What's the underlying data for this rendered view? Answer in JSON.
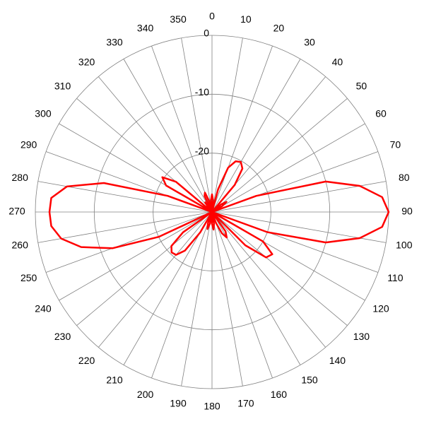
{
  "chart_data": {
    "type": "polar",
    "x": [
      0,
      5,
      10,
      15,
      20,
      25,
      30,
      35,
      40,
      45,
      50,
      55,
      60,
      65,
      70,
      75,
      80,
      85,
      90,
      95,
      100,
      105,
      110,
      115,
      120,
      125,
      130,
      135,
      140,
      145,
      150,
      155,
      160,
      165,
      170,
      175,
      180,
      185,
      190,
      195,
      200,
      205,
      210,
      215,
      220,
      225,
      230,
      235,
      240,
      245,
      250,
      255,
      260,
      265,
      270,
      275,
      280,
      285,
      290,
      295,
      300,
      305,
      310,
      315,
      320,
      325,
      330,
      335,
      340,
      345,
      350,
      355
    ],
    "values": [
      -27,
      -28,
      -30,
      -26,
      -22,
      -20.5,
      -20.2,
      -21,
      -24,
      -30,
      -28,
      -27,
      -28,
      -30,
      -22,
      -10,
      -4.5,
      -1,
      0,
      -1,
      -4.5,
      -10,
      -20,
      -30,
      -20,
      -17.5,
      -18,
      -22,
      -30,
      -26,
      -25,
      -26,
      -28,
      -30,
      -28,
      -27,
      -28,
      -30,
      -28,
      -27,
      -28,
      -30,
      -26,
      -22,
      -20.5,
      -20.3,
      -21,
      -24,
      -30,
      -20,
      -12,
      -7,
      -4,
      -2.6,
      -2.4,
      -2.6,
      -5,
      -11,
      -22,
      -30,
      -21,
      -19.7,
      -22,
      -30,
      -29,
      -28,
      -30,
      -27,
      -26.5,
      -28,
      -30,
      -28
    ],
    "color": "#ff0000",
    "ylim": [
      -30,
      0
    ],
    "yticks": [
      0,
      -10,
      -20
    ],
    "xticks": [
      0,
      10,
      20,
      30,
      40,
      50,
      60,
      70,
      80,
      90,
      100,
      110,
      120,
      130,
      140,
      150,
      160,
      170,
      180,
      190,
      200,
      210,
      220,
      230,
      240,
      250,
      260,
      270,
      280,
      290,
      300,
      310,
      320,
      330,
      340,
      350
    ],
    "grid": true
  }
}
